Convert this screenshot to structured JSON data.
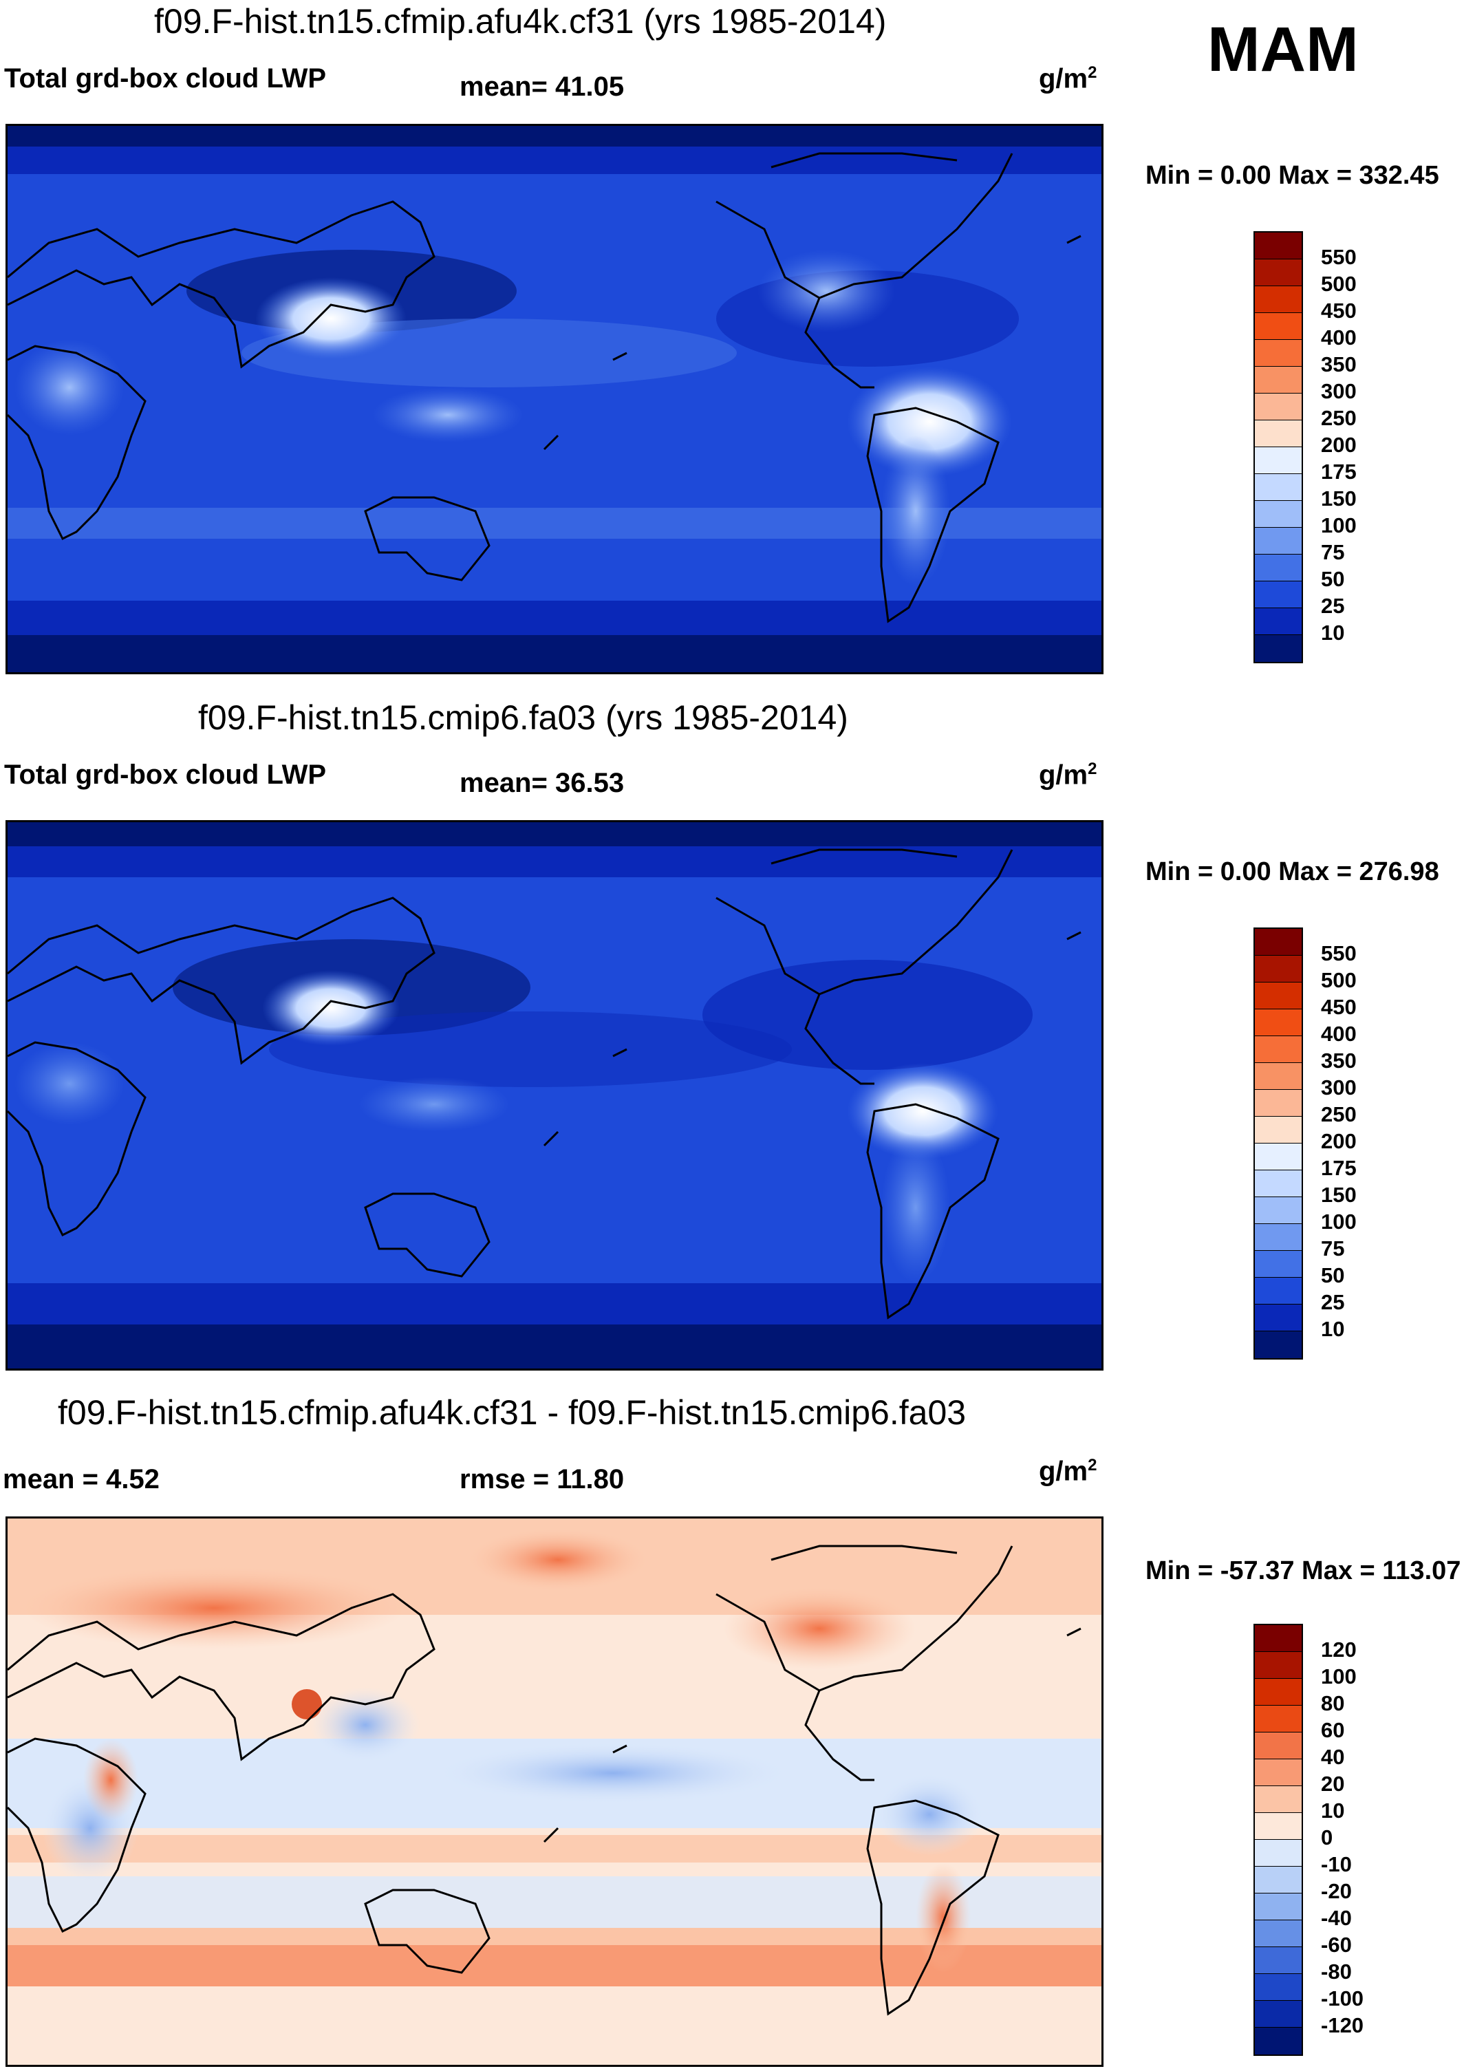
{
  "season": "MAM",
  "panels": [
    {
      "title": "f09.F-hist.tn15.cfmip.afu4k.cf31 (yrs 1985-2014)",
      "left_label": "Total grd-box cloud LWP",
      "center_label": "mean=  41.05",
      "units_base": "g/m",
      "units_sup": "2",
      "minmax": "Min =   0.00 Max = 332.45",
      "colorbar_labels": [
        "550",
        "500",
        "450",
        "400",
        "350",
        "300",
        "250",
        "200",
        "175",
        "150",
        "100",
        "75",
        "50",
        "25",
        "10"
      ],
      "colorbar_colors": [
        "#7a0000",
        "#a81400",
        "#d42e00",
        "#f04e14",
        "#f66e38",
        "#f89264",
        "#fbb796",
        "#fde0cc",
        "#e6f0ff",
        "#c4d9ff",
        "#9fbef9",
        "#7099f0",
        "#4271e6",
        "#1e4ad9",
        "#0a28b8",
        "#001573"
      ]
    },
    {
      "title": "f09.F-hist.tn15.cmip6.fa03 (yrs 1985-2014)",
      "left_label": "Total grd-box cloud LWP",
      "center_label": "mean=  36.53",
      "units_base": "g/m",
      "units_sup": "2",
      "minmax": "Min =   0.00 Max = 276.98",
      "colorbar_labels": [
        "550",
        "500",
        "450",
        "400",
        "350",
        "300",
        "250",
        "200",
        "175",
        "150",
        "100",
        "75",
        "50",
        "25",
        "10"
      ],
      "colorbar_colors": [
        "#7a0000",
        "#a81400",
        "#d42e00",
        "#f04e14",
        "#f66e38",
        "#f89264",
        "#fbb796",
        "#fde0cc",
        "#e6f0ff",
        "#c4d9ff",
        "#9fbef9",
        "#7099f0",
        "#4271e6",
        "#1e4ad9",
        "#0a28b8",
        "#001573"
      ]
    },
    {
      "title": "f09.F-hist.tn15.cfmip.afu4k.cf31 - f09.F-hist.tn15.cmip6.fa03",
      "left_label": "mean =    4.52",
      "center_label": "rmse =  11.80",
      "units_base": "g/m",
      "units_sup": "2",
      "minmax": "Min = -57.37 Max = 113.07",
      "colorbar_labels": [
        "120",
        "100",
        "80",
        "60",
        "40",
        "20",
        "10",
        "0",
        "-10",
        "-20",
        "-40",
        "-60",
        "-80",
        "-100",
        "-120"
      ],
      "colorbar_colors": [
        "#7a0000",
        "#a81400",
        "#d42e00",
        "#ea4a14",
        "#f27448",
        "#f89a74",
        "#fbc4a6",
        "#fde8da",
        "#dbe8fb",
        "#b8d0f7",
        "#8fb2f0",
        "#6690e6",
        "#3e6ad9",
        "#1e48c8",
        "#0a2aa8",
        "#001573"
      ]
    }
  ],
  "chart_data": [
    {
      "type": "heatmap",
      "title": "f09.F-hist.tn15.cfmip.afu4k.cf31 (yrs 1985-2014)",
      "variable": "Total grd-box cloud LWP",
      "units": "g/m2",
      "season": "MAM",
      "mean": 41.05,
      "min": 0.0,
      "max": 332.45,
      "colorbar_levels": [
        10,
        25,
        50,
        75,
        100,
        150,
        175,
        200,
        250,
        300,
        350,
        400,
        450,
        500,
        550
      ]
    },
    {
      "type": "heatmap",
      "title": "f09.F-hist.tn15.cmip6.fa03 (yrs 1985-2014)",
      "variable": "Total grd-box cloud LWP",
      "units": "g/m2",
      "season": "MAM",
      "mean": 36.53,
      "min": 0.0,
      "max": 276.98,
      "colorbar_levels": [
        10,
        25,
        50,
        75,
        100,
        150,
        175,
        200,
        250,
        300,
        350,
        400,
        450,
        500,
        550
      ]
    },
    {
      "type": "heatmap",
      "title": "f09.F-hist.tn15.cfmip.afu4k.cf31 - f09.F-hist.tn15.cmip6.fa03",
      "units": "g/m2",
      "season": "MAM",
      "mean": 4.52,
      "rmse": 11.8,
      "min": -57.37,
      "max": 113.07,
      "colorbar_levels": [
        -120,
        -100,
        -80,
        -60,
        -40,
        -20,
        -10,
        0,
        10,
        20,
        40,
        60,
        80,
        100,
        120
      ]
    }
  ]
}
